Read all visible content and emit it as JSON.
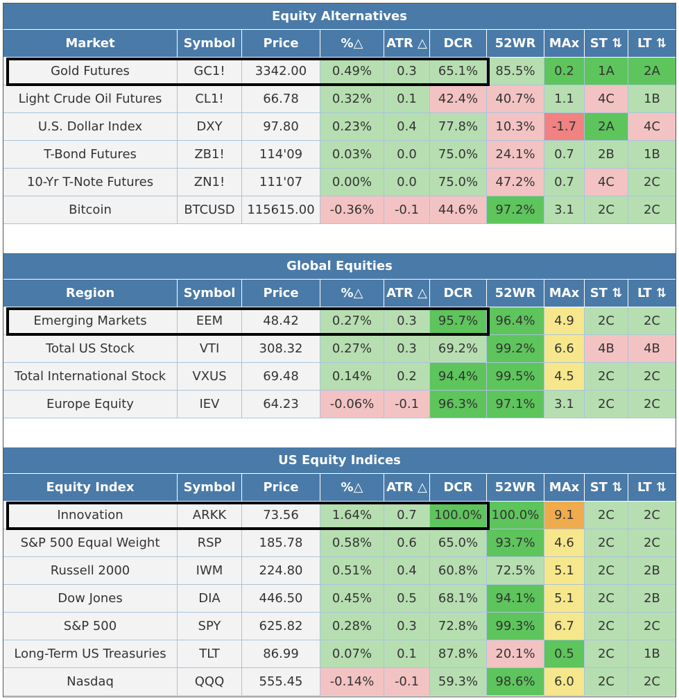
{
  "headers": {
    "symbol": "Symbol",
    "price": "Price",
    "pct": "%△",
    "atr": "ATR △",
    "dcr": "DCR",
    "wr": "52WR",
    "max": "MAx",
    "st": "ST ⇅",
    "lt": "LT ⇅"
  },
  "sections": [
    {
      "title": "Equity Alternatives",
      "first_col": "Market",
      "rows": [
        {
          "name": "Gold Futures",
          "symbol": "GC1!",
          "price": "3342.00",
          "pct": "0.49%",
          "atr": "0.3",
          "dcr": "65.1%",
          "wr": "85.5%",
          "max": "0.2",
          "st": "1A",
          "lt": "2A"
        },
        {
          "name": "Light Crude Oil Futures",
          "symbol": "CL1!",
          "price": "66.78",
          "pct": "0.32%",
          "atr": "0.1",
          "dcr": "42.4%",
          "wr": "40.7%",
          "max": "1.1",
          "st": "4C",
          "lt": "1B"
        },
        {
          "name": "U.S. Dollar Index",
          "symbol": "DXY",
          "price": "97.80",
          "pct": "0.23%",
          "atr": "0.4",
          "dcr": "77.8%",
          "wr": "10.3%",
          "max": "-1.7",
          "st": "2A",
          "lt": "4C"
        },
        {
          "name": "T-Bond Futures",
          "symbol": "ZB1!",
          "price": "114'09",
          "pct": "0.03%",
          "atr": "0.0",
          "dcr": "75.0%",
          "wr": "24.1%",
          "max": "0.7",
          "st": "2B",
          "lt": "1B"
        },
        {
          "name": "10-Yr T-Note Futures",
          "symbol": "ZN1!",
          "price": "111'07",
          "pct": "0.00%",
          "atr": "0.0",
          "dcr": "75.0%",
          "wr": "47.2%",
          "max": "0.7",
          "st": "4C",
          "lt": "2C"
        },
        {
          "name": "Bitcoin",
          "symbol": "BTCUSD",
          "price": "115615.00",
          "pct": "-0.36%",
          "atr": "-0.1",
          "dcr": "44.6%",
          "wr": "97.2%",
          "max": "3.1",
          "st": "2C",
          "lt": "2C"
        }
      ]
    },
    {
      "title": "Global Equities",
      "first_col": "Region",
      "rows": [
        {
          "name": "Emerging Markets",
          "symbol": "EEM",
          "price": "48.42",
          "pct": "0.27%",
          "atr": "0.3",
          "dcr": "95.7%",
          "wr": "96.4%",
          "max": "4.9",
          "st": "2C",
          "lt": "2C"
        },
        {
          "name": "Total US Stock",
          "symbol": "VTI",
          "price": "308.32",
          "pct": "0.27%",
          "atr": "0.3",
          "dcr": "69.2%",
          "wr": "99.2%",
          "max": "6.6",
          "st": "4B",
          "lt": "4B"
        },
        {
          "name": "Total International Stock",
          "symbol": "VXUS",
          "price": "69.48",
          "pct": "0.14%",
          "atr": "0.2",
          "dcr": "94.4%",
          "wr": "99.5%",
          "max": "4.5",
          "st": "2C",
          "lt": "2C"
        },
        {
          "name": "Europe Equity",
          "symbol": "IEV",
          "price": "64.23",
          "pct": "-0.06%",
          "atr": "-0.1",
          "dcr": "96.3%",
          "wr": "97.1%",
          "max": "3.1",
          "st": "2C",
          "lt": "2C"
        }
      ]
    },
    {
      "title": "US Equity Indices",
      "first_col": "Equity Index",
      "rows": [
        {
          "name": "Innovation",
          "symbol": "ARKK",
          "price": "73.56",
          "pct": "1.64%",
          "atr": "0.7",
          "dcr": "100.0%",
          "wr": "100.0%",
          "max": "9.1",
          "st": "2C",
          "lt": "2C"
        },
        {
          "name": "S&P 500 Equal Weight",
          "symbol": "RSP",
          "price": "185.78",
          "pct": "0.58%",
          "atr": "0.6",
          "dcr": "65.0%",
          "wr": "93.7%",
          "max": "4.6",
          "st": "2C",
          "lt": "2C"
        },
        {
          "name": "Russell 2000",
          "symbol": "IWM",
          "price": "224.80",
          "pct": "0.51%",
          "atr": "0.4",
          "dcr": "60.8%",
          "wr": "72.5%",
          "max": "5.1",
          "st": "2C",
          "lt": "2B"
        },
        {
          "name": "Dow Jones",
          "symbol": "DIA",
          "price": "446.50",
          "pct": "0.45%",
          "atr": "0.5",
          "dcr": "68.1%",
          "wr": "94.1%",
          "max": "5.1",
          "st": "2C",
          "lt": "2B"
        },
        {
          "name": "S&P 500",
          "symbol": "SPY",
          "price": "625.82",
          "pct": "0.28%",
          "atr": "0.3",
          "dcr": "72.8%",
          "wr": "99.3%",
          "max": "6.7",
          "st": "2C",
          "lt": "2C"
        },
        {
          "name": "Long-Term US Treasuries",
          "symbol": "TLT",
          "price": "86.99",
          "pct": "0.07%",
          "atr": "0.1",
          "dcr": "87.8%",
          "wr": "20.1%",
          "max": "0.5",
          "st": "2C",
          "lt": "1B"
        },
        {
          "name": "Nasdaq",
          "symbol": "QQQ",
          "price": "555.45",
          "pct": "-0.14%",
          "atr": "-0.1",
          "dcr": "59.3%",
          "wr": "98.6%",
          "max": "6.0",
          "st": "2C",
          "lt": "2C"
        }
      ]
    }
  ],
  "colors": {
    "header_blue": "#4a7aa7",
    "light_green": "#b7deb1",
    "dark_green": "#5ec45c",
    "pink": "#f3c3c3",
    "red": "#f08282",
    "yellow": "#f6e78c",
    "orange": "#f0ac4c",
    "base_gray": "#f3f3f3"
  }
}
